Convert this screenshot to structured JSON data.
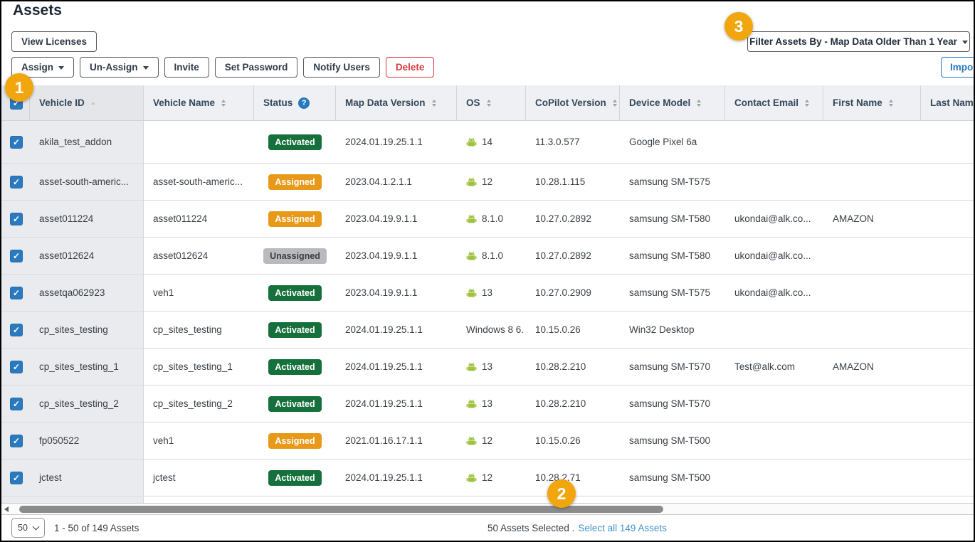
{
  "page": {
    "title": "Assets"
  },
  "toolbar": {
    "view_licenses": "View Licenses",
    "buttons": [
      {
        "label": "Assign",
        "caret": true
      },
      {
        "label": "Un-Assign",
        "caret": true
      },
      {
        "label": "Invite"
      },
      {
        "label": "Set Password"
      },
      {
        "label": "Notify Users"
      },
      {
        "label": "Delete",
        "danger": true
      }
    ],
    "filter_label": "Filter Assets By - Map Data Older Than 1 Year",
    "import_label": "Import"
  },
  "callouts": [
    {
      "number": "1"
    },
    {
      "number": "2"
    },
    {
      "number": "3"
    }
  ],
  "table": {
    "columns": [
      {
        "label": "Vehicle ID",
        "sort": "single"
      },
      {
        "label": "Vehicle Name",
        "sort": "both"
      },
      {
        "label": "Status",
        "help": true
      },
      {
        "label": "Map Data Version",
        "sort": "both"
      },
      {
        "label": "OS",
        "sort": "both"
      },
      {
        "label": "CoPilot Version",
        "sort": "both"
      },
      {
        "label": "Device Model",
        "sort": "both"
      },
      {
        "label": "Contact Email",
        "sort": "both"
      },
      {
        "label": "First Name",
        "sort": "both"
      },
      {
        "label": "Last Name",
        "sort": "both"
      }
    ],
    "rows": [
      {
        "vehicle_id": "akila_test_addon",
        "vehicle_name": "",
        "status": "Activated",
        "map_data_version": "2024.01.19.25.1.1",
        "os_icon": "android-icon",
        "os": "14",
        "copilot_version": "11.3.0.577",
        "device_model": "Google Pixel 6a",
        "contact_email": "",
        "first_name": "",
        "last_name": ""
      },
      {
        "vehicle_id": "asset-south-americ...",
        "vehicle_name": "asset-south-americ...",
        "status": "Assigned",
        "map_data_version": "2023.04.1.2.1.1",
        "os_icon": "android-icon",
        "os": "12",
        "copilot_version": "10.28.1.115",
        "device_model": "samsung SM-T575",
        "contact_email": "",
        "first_name": "",
        "last_name": ""
      },
      {
        "vehicle_id": "asset011224",
        "vehicle_name": "asset011224",
        "status": "Assigned",
        "map_data_version": "2023.04.19.9.1.1",
        "os_icon": "android-icon",
        "os": "8.1.0",
        "copilot_version": "10.27.0.2892",
        "device_model": "samsung SM-T580",
        "contact_email": "ukondai@alk.co...",
        "first_name": "AMAZON",
        "last_name": ""
      },
      {
        "vehicle_id": "asset012624",
        "vehicle_name": "asset012624",
        "status": "Unassigned",
        "map_data_version": "2023.04.19.9.1.1",
        "os_icon": "android-icon",
        "os": "8.1.0",
        "copilot_version": "10.27.0.2892",
        "device_model": "samsung SM-T580",
        "contact_email": "ukondai@alk.co...",
        "first_name": "",
        "last_name": ""
      },
      {
        "vehicle_id": "assetqa062923",
        "vehicle_name": "veh1",
        "status": "Activated",
        "map_data_version": "2023.04.19.9.1.1",
        "os_icon": "android-icon",
        "os": "13",
        "copilot_version": "10.27.0.2909",
        "device_model": "samsung SM-T575",
        "contact_email": "ukondai@alk.co...",
        "first_name": "",
        "last_name": ""
      },
      {
        "vehicle_id": "cp_sites_testing",
        "vehicle_name": "cp_sites_testing",
        "status": "Activated",
        "map_data_version": "2024.01.19.25.1.1",
        "os_icon": null,
        "os": "Windows 8 6.",
        "copilot_version": "10.15.0.26",
        "device_model": "Win32 Desktop",
        "contact_email": "",
        "first_name": "",
        "last_name": ""
      },
      {
        "vehicle_id": "cp_sites_testing_1",
        "vehicle_name": "cp_sites_testing_1",
        "status": "Activated",
        "map_data_version": "2024.01.19.25.1.1",
        "os_icon": "android-icon",
        "os": "13",
        "copilot_version": "10.28.2.210",
        "device_model": "samsung SM-T570",
        "contact_email": "Test@alk.com",
        "first_name": "AMAZON",
        "last_name": ""
      },
      {
        "vehicle_id": "cp_sites_testing_2",
        "vehicle_name": "cp_sites_testing_2",
        "status": "Activated",
        "map_data_version": "2024.01.19.25.1.1",
        "os_icon": "android-icon",
        "os": "13",
        "copilot_version": "10.28.2.210",
        "device_model": "samsung SM-T570",
        "contact_email": "",
        "first_name": "",
        "last_name": ""
      },
      {
        "vehicle_id": "fp050522",
        "vehicle_name": "veh1",
        "status": "Assigned",
        "map_data_version": "2021.01.16.17.1.1",
        "os_icon": "android-icon",
        "os": "12",
        "copilot_version": "10.15.0.26",
        "device_model": "samsung SM-T500",
        "contact_email": "",
        "first_name": "",
        "last_name": ""
      },
      {
        "vehicle_id": "jctest",
        "vehicle_name": "jctest",
        "status": "Activated",
        "map_data_version": "2024.01.19.25.1.1",
        "os_icon": "android-icon",
        "os": "12",
        "copilot_version": "10.28.2.71",
        "device_model": "samsung SM-T500",
        "contact_email": "",
        "first_name": "",
        "last_name": ""
      }
    ]
  },
  "footer": {
    "page_size": "50",
    "range_text": "1 - 50 of 149 Assets",
    "selected_text": "50 Assets Selected .",
    "select_all_link": "Select all 149 Assets"
  },
  "colors": {
    "activated_green": "#15703C",
    "assigned_orange": "#E9991A",
    "unassigned_gray": "#B9BABD",
    "callout_amber": "#F2A60D",
    "checkbox_blue": "#2B7ABF",
    "link_blue": "#3F93CF",
    "delete_red": "#D8383F",
    "import_blue": "#2779BD",
    "android_green": "#9FC13C"
  }
}
